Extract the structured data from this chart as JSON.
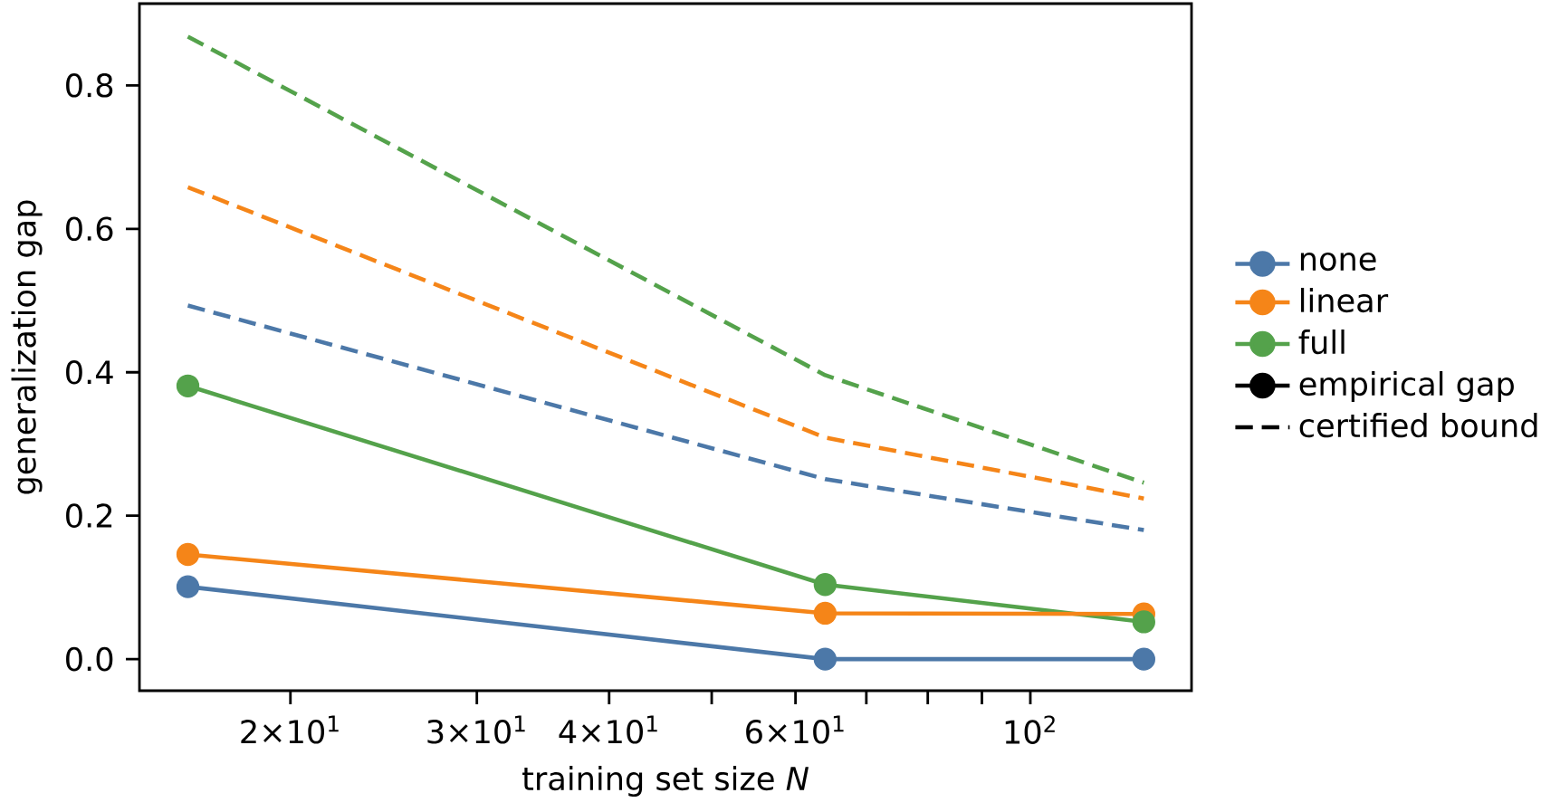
{
  "chart_data": {
    "type": "line",
    "xlabel": "training set size *N*",
    "ylabel": "generalization gap",
    "x": [
      16,
      64,
      128
    ],
    "log": "x",
    "xlim": [
      14.4,
      142
    ],
    "ylim": [
      -0.044,
      0.914
    ],
    "xticks": [
      {
        "value": 20,
        "label": "2×10$^{1}$"
      },
      {
        "value": 30,
        "label": "3×10$^{1}$"
      },
      {
        "value": 40,
        "label": "4×10$^{1}$"
      },
      {
        "value": 50,
        "label": null
      },
      {
        "value": 60,
        "label": "6×10$^{1}$"
      },
      {
        "value": 70,
        "label": null
      },
      {
        "value": 80,
        "label": null
      },
      {
        "value": 90,
        "label": null
      },
      {
        "value": 100,
        "label": "10$^{2}$"
      }
    ],
    "yticks": [
      {
        "value": 0,
        "label": "0.0"
      },
      {
        "value": 0.2,
        "label": "0.2"
      },
      {
        "value": 0.4,
        "label": "0.4"
      },
      {
        "value": 0.6,
        "label": "0.6"
      },
      {
        "value": 0.8,
        "label": "0.8"
      }
    ],
    "legend": "right",
    "series": [
      {
        "name": "none",
        "color": "#4c78a8",
        "values": [
          0.101,
          0,
          0
        ],
        "marker": "circle",
        "line_style": "solid"
      },
      {
        "name": "linear",
        "color": "#f58518",
        "values": [
          0.146,
          0.064,
          0.063
        ],
        "marker": "circle",
        "line_style": "solid"
      },
      {
        "name": "full",
        "color": "#54a24b",
        "values": [
          0.381,
          0.104,
          0.052
        ],
        "marker": "circle",
        "line_style": "solid"
      },
      {
        "color": "#4c78a8",
        "values": [
          0.493,
          0.251,
          0.18
        ],
        "marker": "none",
        "line_style": "dashed"
      },
      {
        "color": "#f58518",
        "values": [
          0.658,
          0.309,
          0.224
        ],
        "marker": "none",
        "line_style": "dashed"
      },
      {
        "color": "#54a24b",
        "values": [
          0.868,
          0.396,
          0.246
        ],
        "marker": "none",
        "line_style": "dashed"
      },
      {
        "name": "empirical gap",
        "color": "#000000",
        "values": [
          null,
          null,
          null
        ],
        "marker": "circle",
        "line_style": "solid"
      },
      {
        "name": "certified bound",
        "color": "#000000",
        "values": [
          null,
          null,
          null
        ],
        "marker": "none",
        "line_style": "dashed"
      }
    ]
  }
}
